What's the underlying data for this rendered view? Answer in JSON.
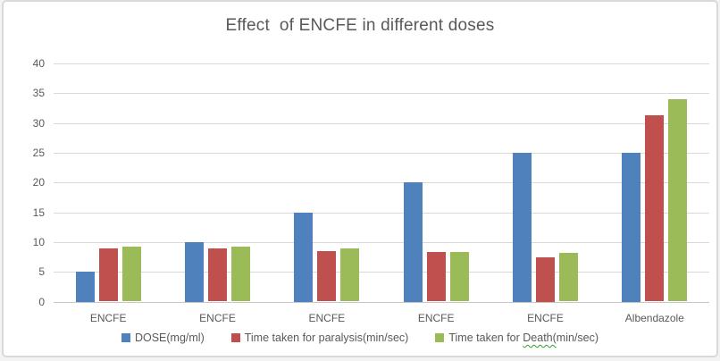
{
  "window": {
    "background": "#ffffff",
    "border_color": "#d9d9d9"
  },
  "chart_data": {
    "type": "bar",
    "title": "Effect  of ENCFE in different doses",
    "title_color": "#595959",
    "categories": [
      "ENCFE",
      "ENCFE",
      "ENCFE",
      "ENCFE",
      "ENCFE",
      "Albendazole"
    ],
    "series": [
      {
        "name": "DOSE(mg/ml)",
        "color": "#4F81BD",
        "values": [
          5,
          10,
          15,
          20,
          25,
          25
        ]
      },
      {
        "name": "Time taken for paralysis(min/sec)",
        "color": "#C0504D",
        "values": [
          9,
          9,
          8.5,
          8.3,
          7.5,
          31.3
        ]
      },
      {
        "name": "Time taken for Death(min/sec)",
        "color": "#9BBB59",
        "values": [
          9.3,
          9.3,
          9,
          8.4,
          8.2,
          34
        ]
      }
    ],
    "xlabel": "",
    "ylabel": "",
    "ylim": [
      0,
      40
    ],
    "yticks": [
      0,
      5,
      10,
      15,
      20,
      25,
      30,
      35,
      40
    ],
    "grid": "horizontal",
    "gridline_color": "#d9d9d9",
    "axis_line_color": "#c6c6c6",
    "tick_label_color": "#595959",
    "legend_position": "bottom"
  },
  "legend": {
    "spellcheck_underline_color": "#2e9e2e",
    "items": [
      {
        "parts": [
          {
            "text": "DOSE(mg/ml)",
            "wavy": false
          }
        ]
      },
      {
        "parts": [
          {
            "text": "Time taken for paralysis(min/sec)",
            "wavy": false
          }
        ]
      },
      {
        "parts": [
          {
            "text": "Time taken for ",
            "wavy": false
          },
          {
            "text": "Death(",
            "wavy": true
          },
          {
            "text": "min/sec)",
            "wavy": false
          }
        ]
      }
    ]
  }
}
